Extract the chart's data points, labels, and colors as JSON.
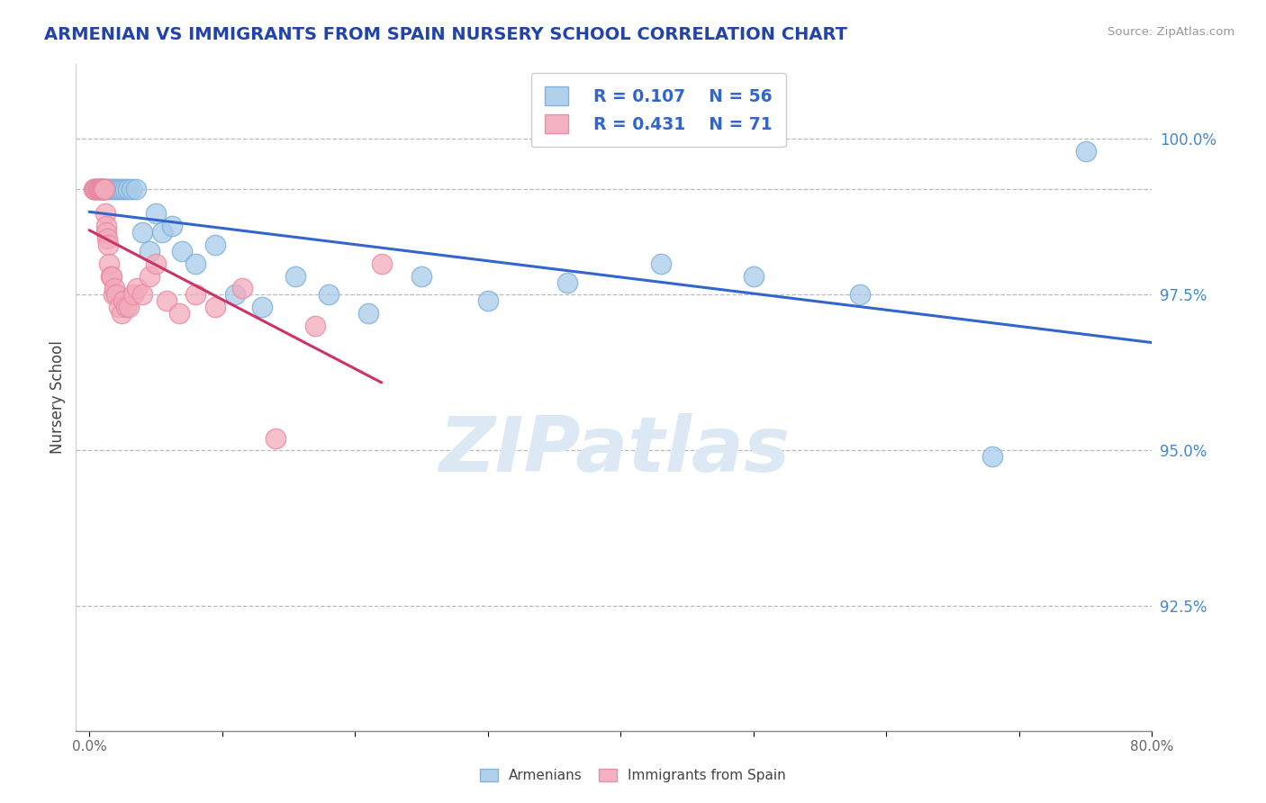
{
  "title": "ARMENIAN VS IMMIGRANTS FROM SPAIN NURSERY SCHOOL CORRELATION CHART",
  "source": "Source: ZipAtlas.com",
  "ylabel": "Nursery School",
  "xlabel_armenians": "Armenians",
  "xlabel_spain": "Immigrants from Spain",
  "xlim_min": -1.0,
  "xlim_max": 80.0,
  "ylim_min": 90.5,
  "ylim_max": 101.2,
  "yticks": [
    92.5,
    95.0,
    97.5,
    100.0
  ],
  "ytick_labels": [
    "92.5%",
    "95.0%",
    "97.5%",
    "100.0%"
  ],
  "top_dashed_y": 99.2,
  "legend_r1": "R = 0.107",
  "legend_n1": "N = 56",
  "legend_r2": "R = 0.431",
  "legend_n2": "N = 71",
  "blue_color": "#A8CCEA",
  "pink_color": "#F2AABB",
  "blue_edge_color": "#7AADD8",
  "pink_edge_color": "#E888A0",
  "blue_line_color": "#3366CC",
  "pink_line_color": "#CC3366",
  "legend_text_color": "#3366CC",
  "ytick_color": "#4488CC",
  "title_color": "#2244AA",
  "watermark_text": "ZIPatlas",
  "blue_x": [
    0.4,
    0.6,
    0.8,
    1.0,
    1.2,
    1.3,
    1.5,
    1.7,
    1.9,
    2.1,
    2.3,
    2.5,
    2.7,
    2.9,
    3.2,
    3.5,
    4.0,
    4.5,
    5.0,
    5.5,
    6.2,
    7.0,
    8.0,
    9.5,
    11.0,
    13.0,
    15.5,
    18.0,
    21.0,
    25.0,
    30.0,
    36.0,
    43.0,
    50.0,
    58.0,
    68.0,
    75.0
  ],
  "blue_y": [
    99.2,
    99.2,
    99.2,
    99.2,
    99.2,
    99.2,
    99.2,
    99.2,
    99.2,
    99.2,
    99.2,
    99.2,
    99.2,
    99.2,
    99.2,
    99.2,
    98.5,
    98.2,
    98.8,
    98.5,
    98.6,
    98.2,
    98.0,
    98.3,
    97.5,
    97.3,
    97.8,
    97.5,
    97.2,
    97.8,
    97.4,
    97.7,
    98.0,
    97.8,
    97.5,
    94.9,
    99.8
  ],
  "pink_x": [
    0.3,
    0.4,
    0.5,
    0.6,
    0.7,
    0.75,
    0.8,
    0.85,
    0.9,
    0.95,
    1.0,
    1.05,
    1.1,
    1.15,
    1.2,
    1.25,
    1.3,
    1.35,
    1.4,
    1.5,
    1.6,
    1.7,
    1.8,
    1.9,
    2.0,
    2.2,
    2.4,
    2.6,
    2.8,
    3.0,
    3.3,
    3.6,
    4.0,
    4.5,
    5.0,
    5.8,
    6.8,
    8.0,
    9.5,
    11.5,
    14.0,
    17.0,
    22.0
  ],
  "pink_y": [
    99.2,
    99.2,
    99.2,
    99.2,
    99.2,
    99.2,
    99.2,
    99.2,
    99.2,
    99.2,
    99.2,
    99.2,
    99.2,
    99.2,
    98.8,
    98.6,
    98.5,
    98.4,
    98.3,
    98.0,
    97.8,
    97.8,
    97.5,
    97.6,
    97.5,
    97.3,
    97.2,
    97.4,
    97.3,
    97.3,
    97.5,
    97.6,
    97.5,
    97.8,
    98.0,
    97.4,
    97.2,
    97.5,
    97.3,
    97.6,
    95.2,
    97.0,
    98.0
  ]
}
